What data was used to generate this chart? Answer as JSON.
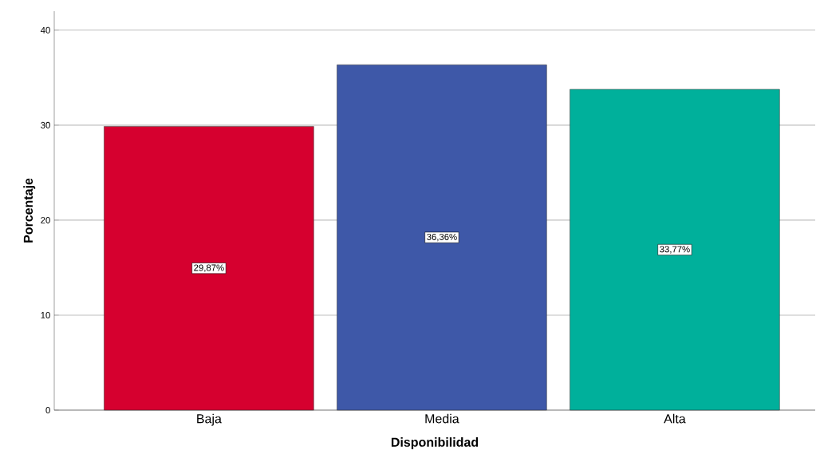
{
  "chart_data": {
    "type": "bar",
    "xlabel": "Disponibilidad",
    "ylabel": "Porcentaje",
    "categories": [
      "Baja",
      "Media",
      "Alta"
    ],
    "values": [
      29.87,
      36.36,
      33.77
    ],
    "colors": [
      "#d6002f",
      "#3e58a8",
      "#00b09b"
    ],
    "value_labels": [
      "29,87%",
      "36,36%",
      "33,77%"
    ],
    "ylim": [
      0,
      42
    ],
    "yticks": [
      0,
      10,
      20,
      30,
      40
    ],
    "grid": "y"
  }
}
